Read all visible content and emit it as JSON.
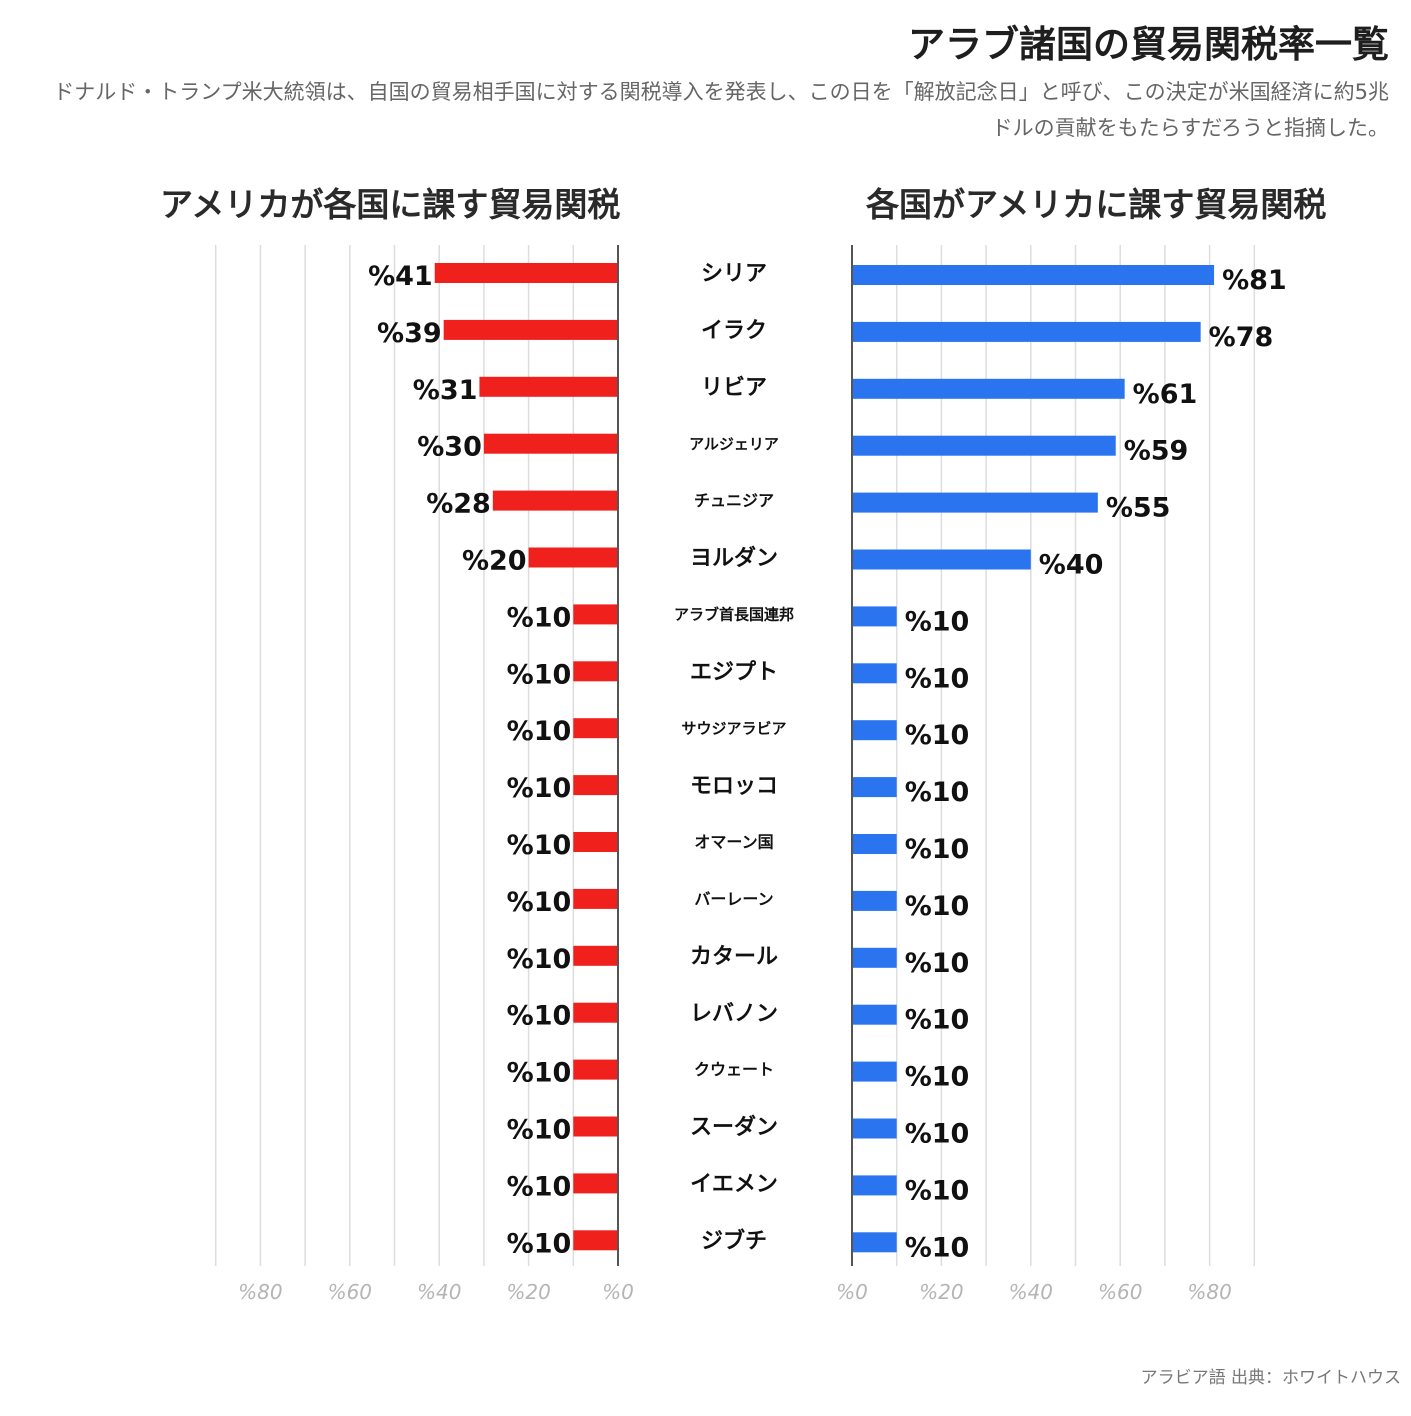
{
  "header": {
    "title": "アラブ諸国の貿易関税率一覧",
    "subtitle": "ドナルド・トランプ米大統領は、自国の貿易相手国に対する関税導入を発表し、この日を「解放記念日」と呼び、この決定が米国経済に約5兆ドルの貢献をもたらすだろうと指摘した。"
  },
  "footer": {
    "source": "アラビア語 出典：ホワイトハウス"
  },
  "colors": {
    "left_bar": "#f0201d",
    "right_bar": "#2a74f0",
    "grid": "#dddddd",
    "axis": "#555555"
  },
  "chart_data": [
    {
      "type": "bar",
      "orientation": "horizontal",
      "direction": "right-to-left",
      "title": "アメリカが各国に課す貿易関税",
      "value_prefix": "%",
      "tick_labels": [
        "%80",
        "%60",
        "%40",
        "%20",
        "%0"
      ],
      "xlim": [
        0,
        90
      ],
      "grid": true,
      "categories": [
        "シリア",
        "イラク",
        "リビア",
        "アルジェリア",
        "チュニジア",
        "ヨルダン",
        "アラブ首長国連邦",
        "エジプト",
        "サウジアラビア",
        "モロッコ",
        "オマーン国",
        "バーレーン",
        "カタール",
        "レバノン",
        "クウェート",
        "スーダン",
        "イエメン",
        "ジブチ"
      ],
      "values": [
        41,
        39,
        31,
        30,
        28,
        20,
        10,
        10,
        10,
        10,
        10,
        10,
        10,
        10,
        10,
        10,
        10,
        10
      ]
    },
    {
      "type": "bar",
      "orientation": "horizontal",
      "direction": "left-to-right",
      "title": "各国がアメリカに課す貿易関税",
      "value_prefix": "%",
      "tick_labels": [
        "%0",
        "%20",
        "%40",
        "%60",
        "%80"
      ],
      "xlim": [
        0,
        90
      ],
      "grid": true,
      "categories": [
        "シリア",
        "イラク",
        "リビア",
        "アルジェリア",
        "チュニジア",
        "ヨルダン",
        "アラブ首長国連邦",
        "エジプト",
        "サウジアラビア",
        "モロッコ",
        "オマーン国",
        "バーレーン",
        "カタール",
        "レバノン",
        "クウェート",
        "スーダン",
        "イエメン",
        "ジブチ"
      ],
      "values": [
        81,
        78,
        61,
        59,
        55,
        40,
        10,
        10,
        10,
        10,
        10,
        10,
        10,
        10,
        10,
        10,
        10,
        10
      ]
    }
  ]
}
